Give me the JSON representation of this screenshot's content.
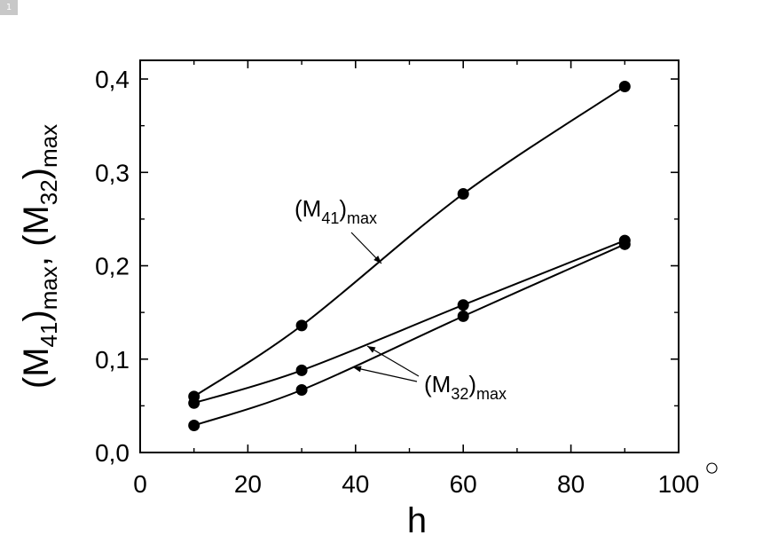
{
  "figure_number": "1",
  "chart_data": {
    "type": "line",
    "xlabel": "h",
    "x_unit_symbol": "°",
    "ylabel": {
      "parts": [
        "(M",
        "41",
        ")",
        "max",
        ", (M",
        "32",
        ")",
        "max"
      ]
    },
    "xlim": [
      0,
      100
    ],
    "ylim": [
      0,
      0.42
    ],
    "xticks": [
      0,
      20,
      40,
      60,
      80,
      100
    ],
    "xtick_labels": [
      "0",
      "20",
      "40",
      "60",
      "80",
      "100"
    ],
    "yticks": [
      0,
      0.1,
      0.2,
      0.3,
      0.4
    ],
    "ytick_labels": [
      "0,0",
      "0,1",
      "0,2",
      "0,3",
      "0,4"
    ],
    "grid": false,
    "marker": "filled-circle",
    "x": [
      10,
      30,
      60,
      90
    ],
    "series": [
      {
        "values": [
          0.06,
          0.136,
          0.277,
          0.392
        ]
      },
      {
        "values": [
          0.053,
          0.088,
          0.158,
          0.227
        ]
      },
      {
        "values": [
          0.029,
          0.067,
          0.146,
          0.223
        ]
      }
    ],
    "annotations": [
      {
        "text": "M",
        "subscript": "41",
        "suffix": "max",
        "series": [
          0
        ]
      },
      {
        "text": "M",
        "subscript": "32",
        "suffix": "max",
        "series": [
          1,
          2
        ]
      }
    ]
  }
}
